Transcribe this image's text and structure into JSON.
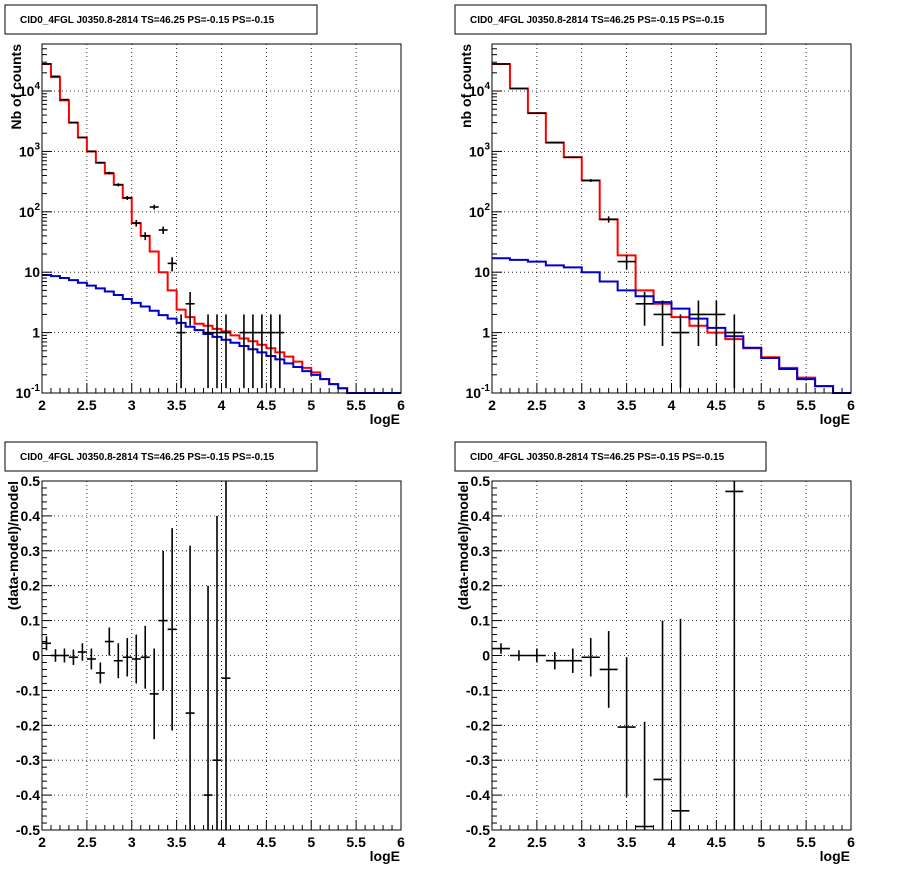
{
  "chart_data": [
    {
      "type": "histogram",
      "title": "CID0_4FGL J0350.8-2814 TS=46.25 PS=-0.15 PS=-0.15",
      "xlabel": "logE",
      "ylabel": "Nb of counts",
      "log_y": true,
      "xlim": [
        2,
        6
      ],
      "ylim": [
        0.1,
        60000
      ],
      "x_ticks": [
        "2",
        "2.5",
        "3",
        "3.5",
        "4",
        "4.5",
        "5",
        "5.5",
        "6"
      ],
      "y_ticks": [
        {
          "mantissa": "10",
          "exp": "-1"
        },
        {
          "mantissa": "1",
          "exp": ""
        },
        {
          "mantissa": "10",
          "exp": ""
        },
        {
          "mantissa": "10",
          "exp": "2"
        },
        {
          "mantissa": "10",
          "exp": "3"
        },
        {
          "mantissa": "10",
          "exp": "4"
        }
      ],
      "grid": true,
      "bin_width": 0.1,
      "series": [
        {
          "color": "#ff0000",
          "kind": "step",
          "x_edges": [
            2.0,
            2.1,
            2.2,
            2.3,
            2.4,
            2.5,
            2.6,
            2.7,
            2.8,
            2.9,
            3.0,
            3.1,
            3.2,
            3.3,
            3.4,
            3.5,
            3.6,
            3.7,
            3.8,
            3.9,
            4.0,
            4.1,
            4.2,
            4.3,
            4.4,
            4.5,
            4.6,
            4.7,
            4.8,
            4.9,
            5.0,
            5.1,
            5.2,
            5.3,
            5.4,
            5.5,
            5.6,
            5.7,
            5.8,
            5.9,
            6.0
          ],
          "values": [
            28000,
            17000,
            7000,
            3000,
            1700,
            1000,
            650,
            430,
            280,
            170,
            65,
            40,
            22,
            10,
            5,
            2.4,
            1.8,
            1.4,
            1.3,
            1.15,
            1.05,
            0.9,
            0.8,
            0.72,
            0.63,
            0.55,
            0.47,
            0.4,
            0.33,
            0.26,
            0.22,
            0.17,
            0.14,
            0.12,
            0.1,
            0.1,
            0.1,
            0.1,
            0.1,
            0.1
          ]
        },
        {
          "color": "#0000cc",
          "kind": "step",
          "x_edges": [
            2.0,
            2.1,
            2.2,
            2.3,
            2.4,
            2.5,
            2.6,
            2.7,
            2.8,
            2.9,
            3.0,
            3.1,
            3.2,
            3.3,
            3.4,
            3.5,
            3.6,
            3.7,
            3.8,
            3.9,
            4.0,
            4.1,
            4.2,
            4.3,
            4.4,
            4.5,
            4.6,
            4.7,
            4.8,
            4.9,
            5.0,
            5.1,
            5.2,
            5.3,
            5.4,
            5.5,
            5.6,
            5.7,
            5.8,
            5.9,
            6.0
          ],
          "values": [
            9,
            8.6,
            8,
            7.4,
            6.7,
            6,
            5.4,
            4.8,
            4.2,
            3.6,
            3.1,
            2.7,
            2.3,
            1.95,
            1.7,
            1.45,
            1.25,
            1.1,
            0.95,
            0.85,
            0.76,
            0.68,
            0.6,
            0.53,
            0.47,
            0.41,
            0.36,
            0.31,
            0.27,
            0.23,
            0.2,
            0.17,
            0.14,
            0.12,
            0.1,
            0.1,
            0.1,
            0.1,
            0.1,
            0.1
          ]
        }
      ],
      "points": [
        {
          "x": 2.05,
          "y": 28000,
          "yerr_lo": 27800,
          "yerr_hi": 28200
        },
        {
          "x": 2.15,
          "y": 17500,
          "yerr_lo": 17370,
          "yerr_hi": 17630
        },
        {
          "x": 2.25,
          "y": 7200,
          "yerr_lo": 7115,
          "yerr_hi": 7285
        },
        {
          "x": 2.35,
          "y": 3000,
          "yerr_lo": 2945,
          "yerr_hi": 3055
        },
        {
          "x": 2.45,
          "y": 1700,
          "yerr_lo": 1660,
          "yerr_hi": 1740
        },
        {
          "x": 2.55,
          "y": 1000,
          "yerr_lo": 968,
          "yerr_hi": 1032
        },
        {
          "x": 2.65,
          "y": 650,
          "yerr_lo": 625,
          "yerr_hi": 675
        },
        {
          "x": 2.75,
          "y": 440,
          "yerr_lo": 419,
          "yerr_hi": 461
        },
        {
          "x": 2.85,
          "y": 280,
          "yerr_lo": 263,
          "yerr_hi": 297
        },
        {
          "x": 2.95,
          "y": 170,
          "yerr_lo": 157,
          "yerr_hi": 183
        },
        {
          "x": 3.05,
          "y": 65,
          "yerr_lo": 57,
          "yerr_hi": 73
        },
        {
          "x": 3.15,
          "y": 40,
          "yerr_lo": 34,
          "yerr_hi": 46
        },
        {
          "x": 3.25,
          "y": 120,
          "yerr_lo": 109,
          "yerr_hi": 131
        },
        {
          "x": 3.35,
          "y": 50,
          "yerr_lo": 43,
          "yerr_hi": 57
        },
        {
          "x": 3.45,
          "y": 14,
          "yerr_lo": 10.3,
          "yerr_hi": 17.7
        },
        {
          "x": 3.55,
          "y": 1,
          "yerr_lo": 0.12,
          "yerr_hi": 2
        },
        {
          "x": 3.65,
          "y": 3,
          "yerr_lo": 1.3,
          "yerr_hi": 4.7
        },
        {
          "x": 3.85,
          "y": 1,
          "yerr_lo": 0.12,
          "yerr_hi": 2
        },
        {
          "x": 3.95,
          "y": 1,
          "yerr_lo": 0.12,
          "yerr_hi": 2
        },
        {
          "x": 4.05,
          "y": 1,
          "yerr_lo": 0.12,
          "yerr_hi": 2
        },
        {
          "x": 4.25,
          "y": 1,
          "yerr_lo": 0.12,
          "yerr_hi": 2
        },
        {
          "x": 4.35,
          "y": 1,
          "yerr_lo": 0.12,
          "yerr_hi": 2
        },
        {
          "x": 4.45,
          "y": 1,
          "yerr_lo": 0.12,
          "yerr_hi": 2
        },
        {
          "x": 4.55,
          "y": 1,
          "yerr_lo": 0.12,
          "yerr_hi": 2
        },
        {
          "x": 4.65,
          "y": 1,
          "yerr_lo": 0.12,
          "yerr_hi": 2
        }
      ]
    },
    {
      "type": "histogram",
      "title": "CID0_4FGL J0350.8-2814 TS=46.25 PS=-0.15 PS=-0.15",
      "xlabel": "logE",
      "ylabel": "nb of counts",
      "log_y": true,
      "xlim": [
        2,
        6
      ],
      "ylim": [
        0.1,
        60000
      ],
      "x_ticks": [
        "2",
        "2.5",
        "3",
        "3.5",
        "4",
        "4.5",
        "5",
        "5.5",
        "6"
      ],
      "y_ticks": [
        {
          "mantissa": "10",
          "exp": "-1"
        },
        {
          "mantissa": "1",
          "exp": ""
        },
        {
          "mantissa": "10",
          "exp": ""
        },
        {
          "mantissa": "10",
          "exp": "2"
        },
        {
          "mantissa": "10",
          "exp": "3"
        },
        {
          "mantissa": "10",
          "exp": "4"
        }
      ],
      "grid": true,
      "bin_width": 0.2,
      "series": [
        {
          "color": "#ff0000",
          "kind": "step",
          "x_edges": [
            2.0,
            2.2,
            2.4,
            2.6,
            2.8,
            3.0,
            3.2,
            3.4,
            3.6,
            3.8,
            4.0,
            4.2,
            4.4,
            4.6,
            4.8,
            5.0,
            5.2,
            5.4,
            5.6,
            5.8,
            6.0
          ],
          "values": [
            28000,
            11000,
            4300,
            1400,
            800,
            330,
            75,
            19,
            5,
            3,
            1.8,
            1.3,
            1.0,
            0.78,
            0.55,
            0.39,
            0.26,
            0.18,
            0.13,
            0.1
          ]
        },
        {
          "color": "#0000cc",
          "kind": "step",
          "x_edges": [
            2.0,
            2.2,
            2.4,
            2.6,
            2.8,
            3.0,
            3.2,
            3.4,
            3.6,
            3.8,
            4.0,
            4.2,
            4.4,
            4.6,
            4.8,
            5.0,
            5.2,
            5.4,
            5.6,
            5.8,
            6.0
          ],
          "values": [
            17,
            16,
            15,
            13,
            12,
            10,
            7,
            5,
            4,
            3.2,
            2.5,
            1.7,
            1.2,
            0.87,
            0.56,
            0.38,
            0.25,
            0.17,
            0.13,
            0.1
          ]
        }
      ],
      "points": [
        {
          "x": 2.1,
          "y": 28000,
          "yerr_lo": 27800,
          "yerr_hi": 28200
        },
        {
          "x": 2.3,
          "y": 11000,
          "yerr_lo": 10890,
          "yerr_hi": 11110
        },
        {
          "x": 2.5,
          "y": 4300,
          "yerr_lo": 4235,
          "yerr_hi": 4365
        },
        {
          "x": 2.7,
          "y": 1400,
          "yerr_lo": 1362,
          "yerr_hi": 1438
        },
        {
          "x": 2.9,
          "y": 800,
          "yerr_lo": 772,
          "yerr_hi": 828
        },
        {
          "x": 3.1,
          "y": 330,
          "yerr_lo": 312,
          "yerr_hi": 348
        },
        {
          "x": 3.3,
          "y": 75,
          "yerr_lo": 66,
          "yerr_hi": 84
        },
        {
          "x": 3.5,
          "y": 15,
          "yerr_lo": 11,
          "yerr_hi": 19
        },
        {
          "x": 3.7,
          "y": 3,
          "yerr_lo": 1.3,
          "yerr_hi": 4.7
        },
        {
          "x": 3.9,
          "y": 2,
          "yerr_lo": 0.6,
          "yerr_hi": 3.4
        },
        {
          "x": 4.1,
          "y": 1,
          "yerr_lo": 0.12,
          "yerr_hi": 2
        },
        {
          "x": 4.3,
          "y": 2,
          "yerr_lo": 0.6,
          "yerr_hi": 3.4
        },
        {
          "x": 4.5,
          "y": 2,
          "yerr_lo": 0.6,
          "yerr_hi": 3.4
        },
        {
          "x": 4.7,
          "y": 1,
          "yerr_lo": 0.12,
          "yerr_hi": 2
        }
      ]
    },
    {
      "type": "scatter",
      "title": "CID0_4FGL J0350.8-2814 TS=46.25 PS=-0.15 PS=-0.15",
      "xlabel": "logE",
      "ylabel": "(data-model)/model",
      "log_y": false,
      "xlim": [
        2,
        6
      ],
      "ylim": [
        -0.5,
        0.5
      ],
      "x_ticks": [
        "2",
        "2.5",
        "3",
        "3.5",
        "4",
        "4.5",
        "5",
        "5.5",
        "6"
      ],
      "y_ticks": [
        "-0.5",
        "-0.4",
        "-0.3",
        "-0.2",
        "-0.1",
        "0",
        "0.1",
        "0.2",
        "0.3",
        "0.4",
        "0.5"
      ],
      "grid": true,
      "bin_width": 0.1,
      "points": [
        {
          "x": 2.05,
          "y": 0.035,
          "yerr": 0.02
        },
        {
          "x": 2.15,
          "y": 0.0,
          "yerr": 0.018
        },
        {
          "x": 2.25,
          "y": 0.0,
          "yerr": 0.02
        },
        {
          "x": 2.35,
          "y": -0.005,
          "yerr": 0.022
        },
        {
          "x": 2.45,
          "y": 0.01,
          "yerr": 0.025
        },
        {
          "x": 2.55,
          "y": -0.01,
          "yerr": 0.03
        },
        {
          "x": 2.65,
          "y": -0.05,
          "yerr": 0.03
        },
        {
          "x": 2.75,
          "y": 0.04,
          "yerr": 0.04
        },
        {
          "x": 2.85,
          "y": -0.015,
          "yerr": 0.05
        },
        {
          "x": 2.95,
          "y": -0.005,
          "yerr": 0.055
        },
        {
          "x": 3.05,
          "y": -0.01,
          "yerr": 0.07
        },
        {
          "x": 3.15,
          "y": -0.005,
          "yerr": 0.09
        },
        {
          "x": 3.25,
          "y": -0.11,
          "yerr": 0.13
        },
        {
          "x": 3.35,
          "y": 0.1,
          "yerr": 0.2
        },
        {
          "x": 3.45,
          "y": 0.075,
          "yerr": 0.29
        },
        {
          "x": 3.65,
          "y": -0.165,
          "yerr": 0.48
        },
        {
          "x": 3.85,
          "y": -0.4,
          "yerr": 0.6
        },
        {
          "x": 3.95,
          "y": -0.3,
          "yerr": 0.7
        },
        {
          "x": 4.05,
          "y": -0.065,
          "yerr": 0.8
        }
      ]
    },
    {
      "type": "scatter",
      "title": "CID0_4FGL J0350.8-2814 TS=46.25 PS=-0.15 PS=-0.15",
      "xlabel": "logE",
      "ylabel": "(data-model)/model",
      "log_y": false,
      "xlim": [
        2,
        6
      ],
      "ylim": [
        -0.5,
        0.5
      ],
      "x_ticks": [
        "2",
        "2.5",
        "3",
        "3.5",
        "4",
        "4.5",
        "5",
        "5.5",
        "6"
      ],
      "y_ticks": [
        "-0.5",
        "-0.4",
        "-0.3",
        "-0.2",
        "-0.1",
        "0",
        "0.1",
        "0.2",
        "0.3",
        "0.4",
        "0.5"
      ],
      "grid": true,
      "bin_width": 0.2,
      "points": [
        {
          "x": 2.1,
          "y": 0.02,
          "yerr": 0.015
        },
        {
          "x": 2.3,
          "y": 0.0,
          "yerr": 0.015
        },
        {
          "x": 2.5,
          "y": 0.0,
          "yerr": 0.02
        },
        {
          "x": 2.7,
          "y": -0.015,
          "yerr": 0.025
        },
        {
          "x": 2.9,
          "y": -0.015,
          "yerr": 0.035
        },
        {
          "x": 3.1,
          "y": -0.005,
          "yerr": 0.055
        },
        {
          "x": 3.3,
          "y": -0.04,
          "yerr": 0.11
        },
        {
          "x": 3.5,
          "y": -0.205,
          "yerr": 0.2
        },
        {
          "x": 3.7,
          "y": -0.49,
          "yerr": 0.3
        },
        {
          "x": 3.9,
          "y": -0.355,
          "yerr": 0.455
        },
        {
          "x": 4.1,
          "y": -0.445,
          "yerr": 0.55
        },
        {
          "x": 4.7,
          "y": 0.47,
          "yerr": 1.0
        }
      ]
    }
  ]
}
